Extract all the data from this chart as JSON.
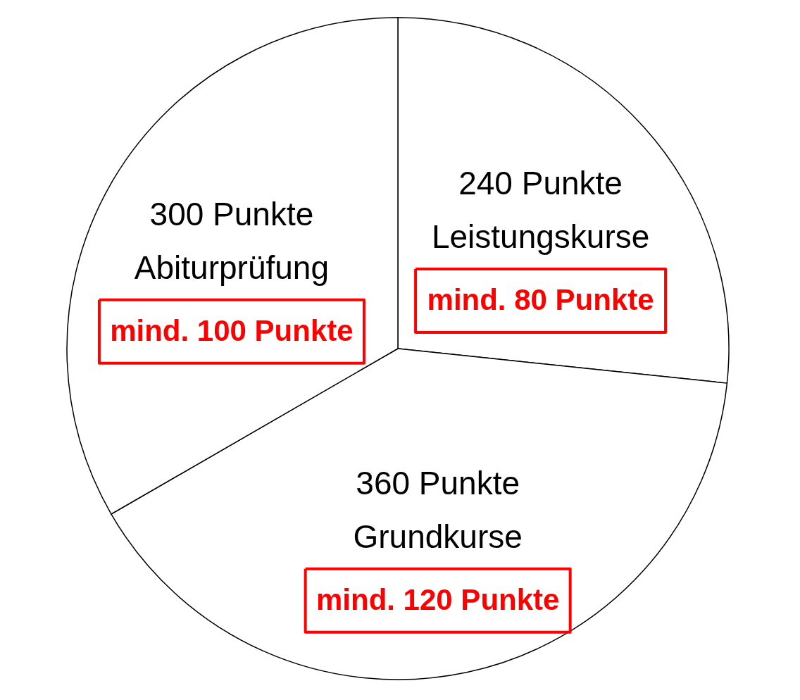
{
  "chart_data": {
    "type": "pie",
    "categories": [
      "Leistungskurse",
      "Grundkurse",
      "Abiturprüfung"
    ],
    "values": [
      240,
      360,
      300
    ],
    "value_labels": [
      "240 Punkte",
      "360 Punkte",
      "300 Punkte"
    ],
    "colors": [
      "#ffffff",
      "#ffffff",
      "#ffffff"
    ],
    "annotations": [
      "mind. 80 Punkte",
      "mind. 120 Punkte",
      "mind. 100 Punkte"
    ],
    "legend": false
  }
}
